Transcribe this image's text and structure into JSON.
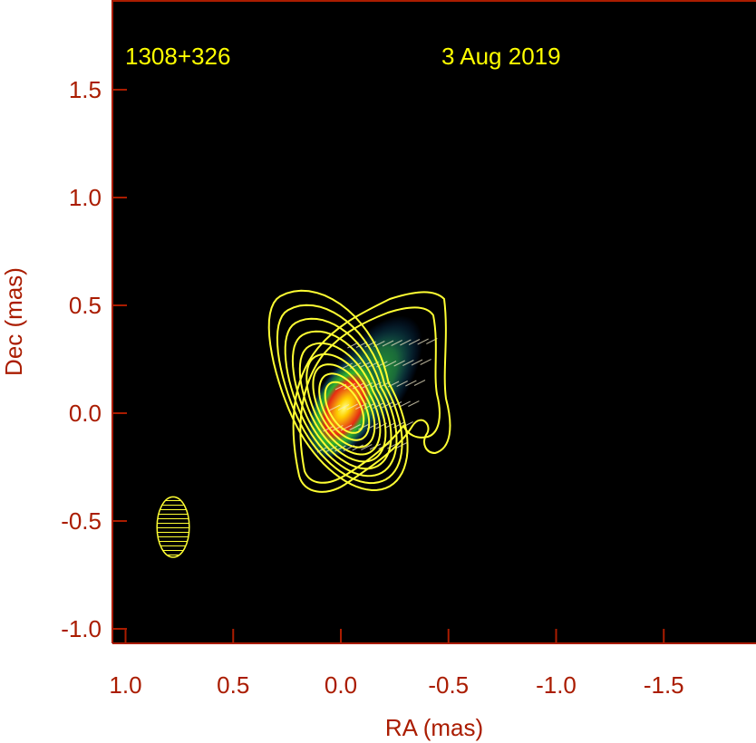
{
  "chart_data": {
    "type": "contour",
    "source_label": "1308+326",
    "date_label": "3 Aug 2019",
    "xlabel": "RA (mas)",
    "ylabel": "Dec (mas)",
    "xlim": [
      1.0,
      -1.9
    ],
    "ylim": [
      -1.05,
      1.9
    ],
    "xticks": [
      {
        "value": 1.0,
        "label": "1.0"
      },
      {
        "value": 0.5,
        "label": "0.5"
      },
      {
        "value": 0.0,
        "label": "0.0"
      },
      {
        "value": -0.5,
        "label": "-0.5"
      },
      {
        "value": -1.0,
        "label": "-1.0"
      },
      {
        "value": -1.5,
        "label": "-1.5"
      }
    ],
    "yticks": [
      {
        "value": 1.5,
        "label": "1.5"
      },
      {
        "value": 1.0,
        "label": "1.0"
      },
      {
        "value": 0.5,
        "label": "0.5"
      },
      {
        "value": 0.0,
        "label": "0.0"
      },
      {
        "value": -0.5,
        "label": "-0.5"
      },
      {
        "value": -1.0,
        "label": "-1.0"
      }
    ],
    "core": {
      "ra": 0.0,
      "dec": 0.0
    },
    "beam": {
      "ra": 0.8,
      "dec": -0.57,
      "major_mas": 0.28,
      "minor_mas": 0.15
    },
    "colors": {
      "background": "#000000",
      "axis": "#aa1c00",
      "contour": "#ffff33",
      "annotation": "#ffff00",
      "colormap": [
        "#000000",
        "#063a8c",
        "#1a6a3a",
        "#2fb32f",
        "#e62b12",
        "#ffd000",
        "#ffff80"
      ]
    }
  }
}
